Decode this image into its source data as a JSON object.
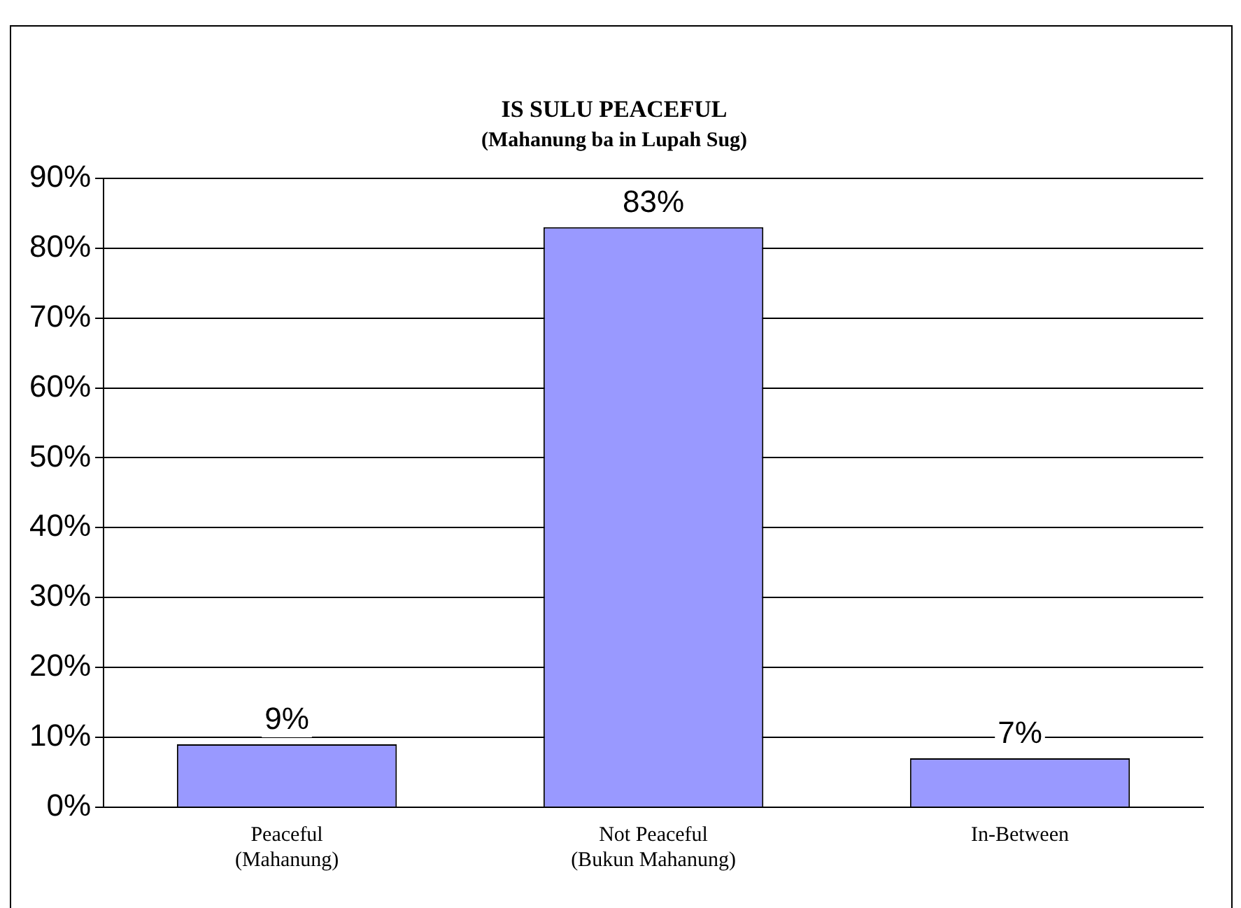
{
  "chart_data": {
    "type": "bar",
    "title": "IS SULU PEACEFUL",
    "subtitle": "(Mahanung ba in Lupah Sug)",
    "categories": [
      "Peaceful\n(Mahanung)",
      "Not Peaceful\n(Bukun Mahanung)",
      "In-Between"
    ],
    "values": [
      9,
      83,
      7
    ],
    "color": "#9999ff",
    "value_labels": [
      "9%",
      "83%",
      "7%"
    ],
    "ylim": [
      0,
      90
    ],
    "yticks": [
      {
        "value": 0,
        "label": "0%"
      },
      {
        "value": 10,
        "label": "10%"
      },
      {
        "value": 20,
        "label": "20%"
      },
      {
        "value": 30,
        "label": "30%"
      },
      {
        "value": 40,
        "label": "40%"
      },
      {
        "value": 50,
        "label": "50%"
      },
      {
        "value": 60,
        "label": "60%"
      },
      {
        "value": 70,
        "label": "70%"
      },
      {
        "value": 80,
        "label": "80%"
      },
      {
        "value": 90,
        "label": "90%"
      }
    ],
    "grid": "y",
    "legend": false
  }
}
